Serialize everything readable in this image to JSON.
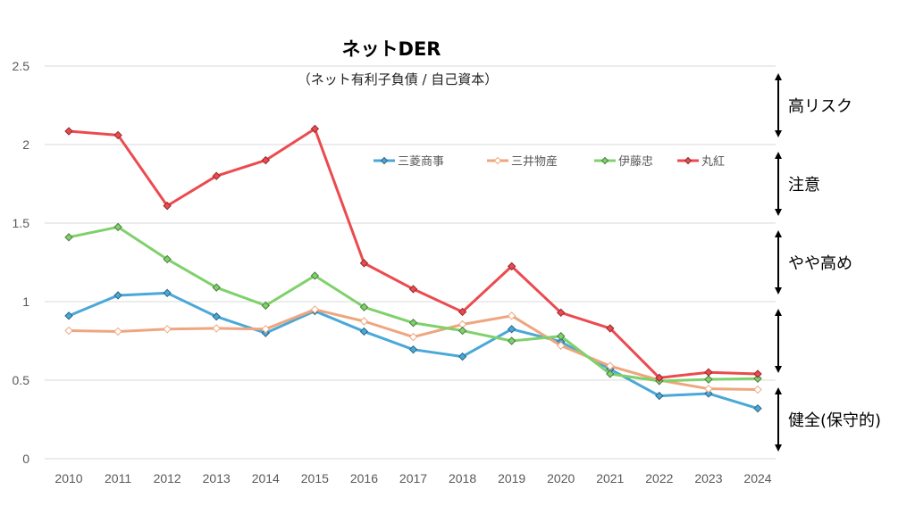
{
  "chart_data": {
    "type": "line",
    "title": "ネットDER",
    "subtitle": "（ネット有利子負債 / 自己資本）",
    "xlabel": "",
    "ylabel": "",
    "categories": [
      "2010",
      "2011",
      "2012",
      "2013",
      "2014",
      "2015",
      "2016",
      "2017",
      "2018",
      "2019",
      "2020",
      "2021",
      "2022",
      "2023",
      "2024"
    ],
    "ylim": [
      0,
      2.5
    ],
    "yticks": [
      0,
      0.5,
      1,
      1.5,
      2,
      2.5
    ],
    "ytick_labels": [
      "0",
      "0.5",
      "1",
      "1.5",
      "2",
      "2.5"
    ],
    "grid": true,
    "legend_position": "top-center (inside plot)",
    "series": [
      {
        "name": "三菱商事",
        "color": "#4aa8d8",
        "marker": "diamond-filled",
        "values": [
          0.91,
          1.04,
          1.055,
          0.905,
          0.8,
          0.94,
          0.81,
          0.695,
          0.65,
          0.825,
          0.745,
          0.57,
          0.4,
          0.415,
          0.32
        ]
      },
      {
        "name": "三井物産",
        "color": "#eea67f",
        "marker": "diamond-hollow",
        "values": [
          0.815,
          0.81,
          0.825,
          0.83,
          0.825,
          0.95,
          0.875,
          0.775,
          0.855,
          0.91,
          0.72,
          0.59,
          0.5,
          0.445,
          0.44
        ]
      },
      {
        "name": "伊藤忠",
        "color": "#7fd16b",
        "marker": "diamond-filled",
        "values": [
          1.41,
          1.475,
          1.27,
          1.09,
          0.975,
          1.165,
          0.965,
          0.865,
          0.815,
          0.75,
          0.78,
          0.54,
          0.495,
          0.505,
          0.51
        ]
      },
      {
        "name": "丸紅",
        "color": "#ec4a4f",
        "marker": "diamond-filled",
        "values": [
          2.085,
          2.06,
          1.61,
          1.8,
          1.9,
          2.1,
          1.245,
          1.08,
          0.935,
          1.225,
          0.93,
          0.83,
          0.515,
          0.55,
          0.54
        ]
      }
    ],
    "annotations": [
      {
        "label": "高リスク",
        "range": [
          2.0,
          2.5
        ]
      },
      {
        "label": "注意",
        "range": [
          1.5,
          2.0
        ]
      },
      {
        "label": "やや高め",
        "range": [
          1.0,
          1.5
        ]
      },
      {
        "label": "",
        "range": [
          0.5,
          1.0
        ]
      },
      {
        "label": "健全(保守的)",
        "range": [
          0.0,
          0.5
        ]
      }
    ]
  }
}
